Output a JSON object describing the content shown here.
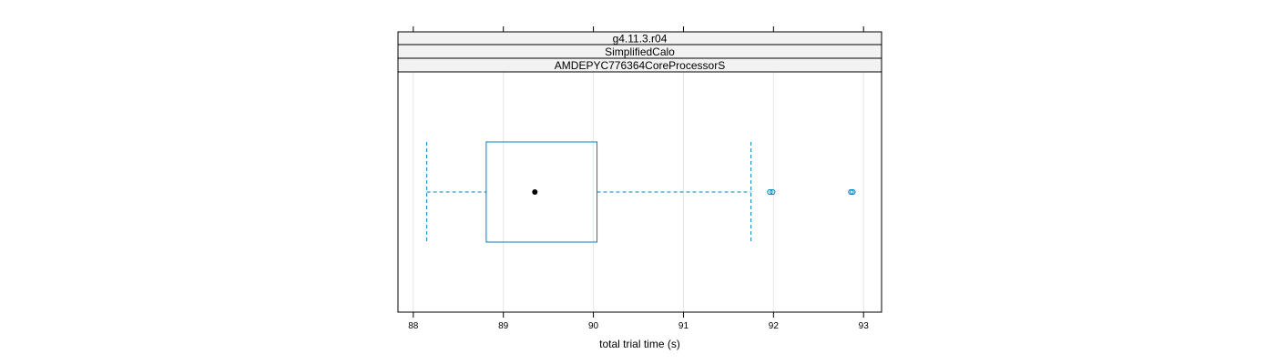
{
  "chart_data": {
    "type": "boxplot",
    "orientation": "horizontal",
    "strips": [
      "g4.11.3.r04",
      "SimplifiedCalo",
      "AMDEPYC776364CoreProcessorS"
    ],
    "xlabel": "total trial time (s)",
    "xlim": [
      87.83,
      93.2
    ],
    "xticks": [
      88,
      89,
      90,
      91,
      92,
      93
    ],
    "grid": true,
    "series": [
      {
        "whisker_low": 88.15,
        "q1": 88.81,
        "median": 89.35,
        "q3": 90.04,
        "whisker_high": 91.75,
        "outliers": [
          91.96,
          91.99,
          92.86,
          92.88
        ]
      }
    ],
    "colors": {
      "box": "#0080c0",
      "whisker": "#0080c0",
      "median_dot": "#000000",
      "strip_bg": "#f2f2f2",
      "grid": "#e6e6e6",
      "frame": "#000000"
    }
  }
}
